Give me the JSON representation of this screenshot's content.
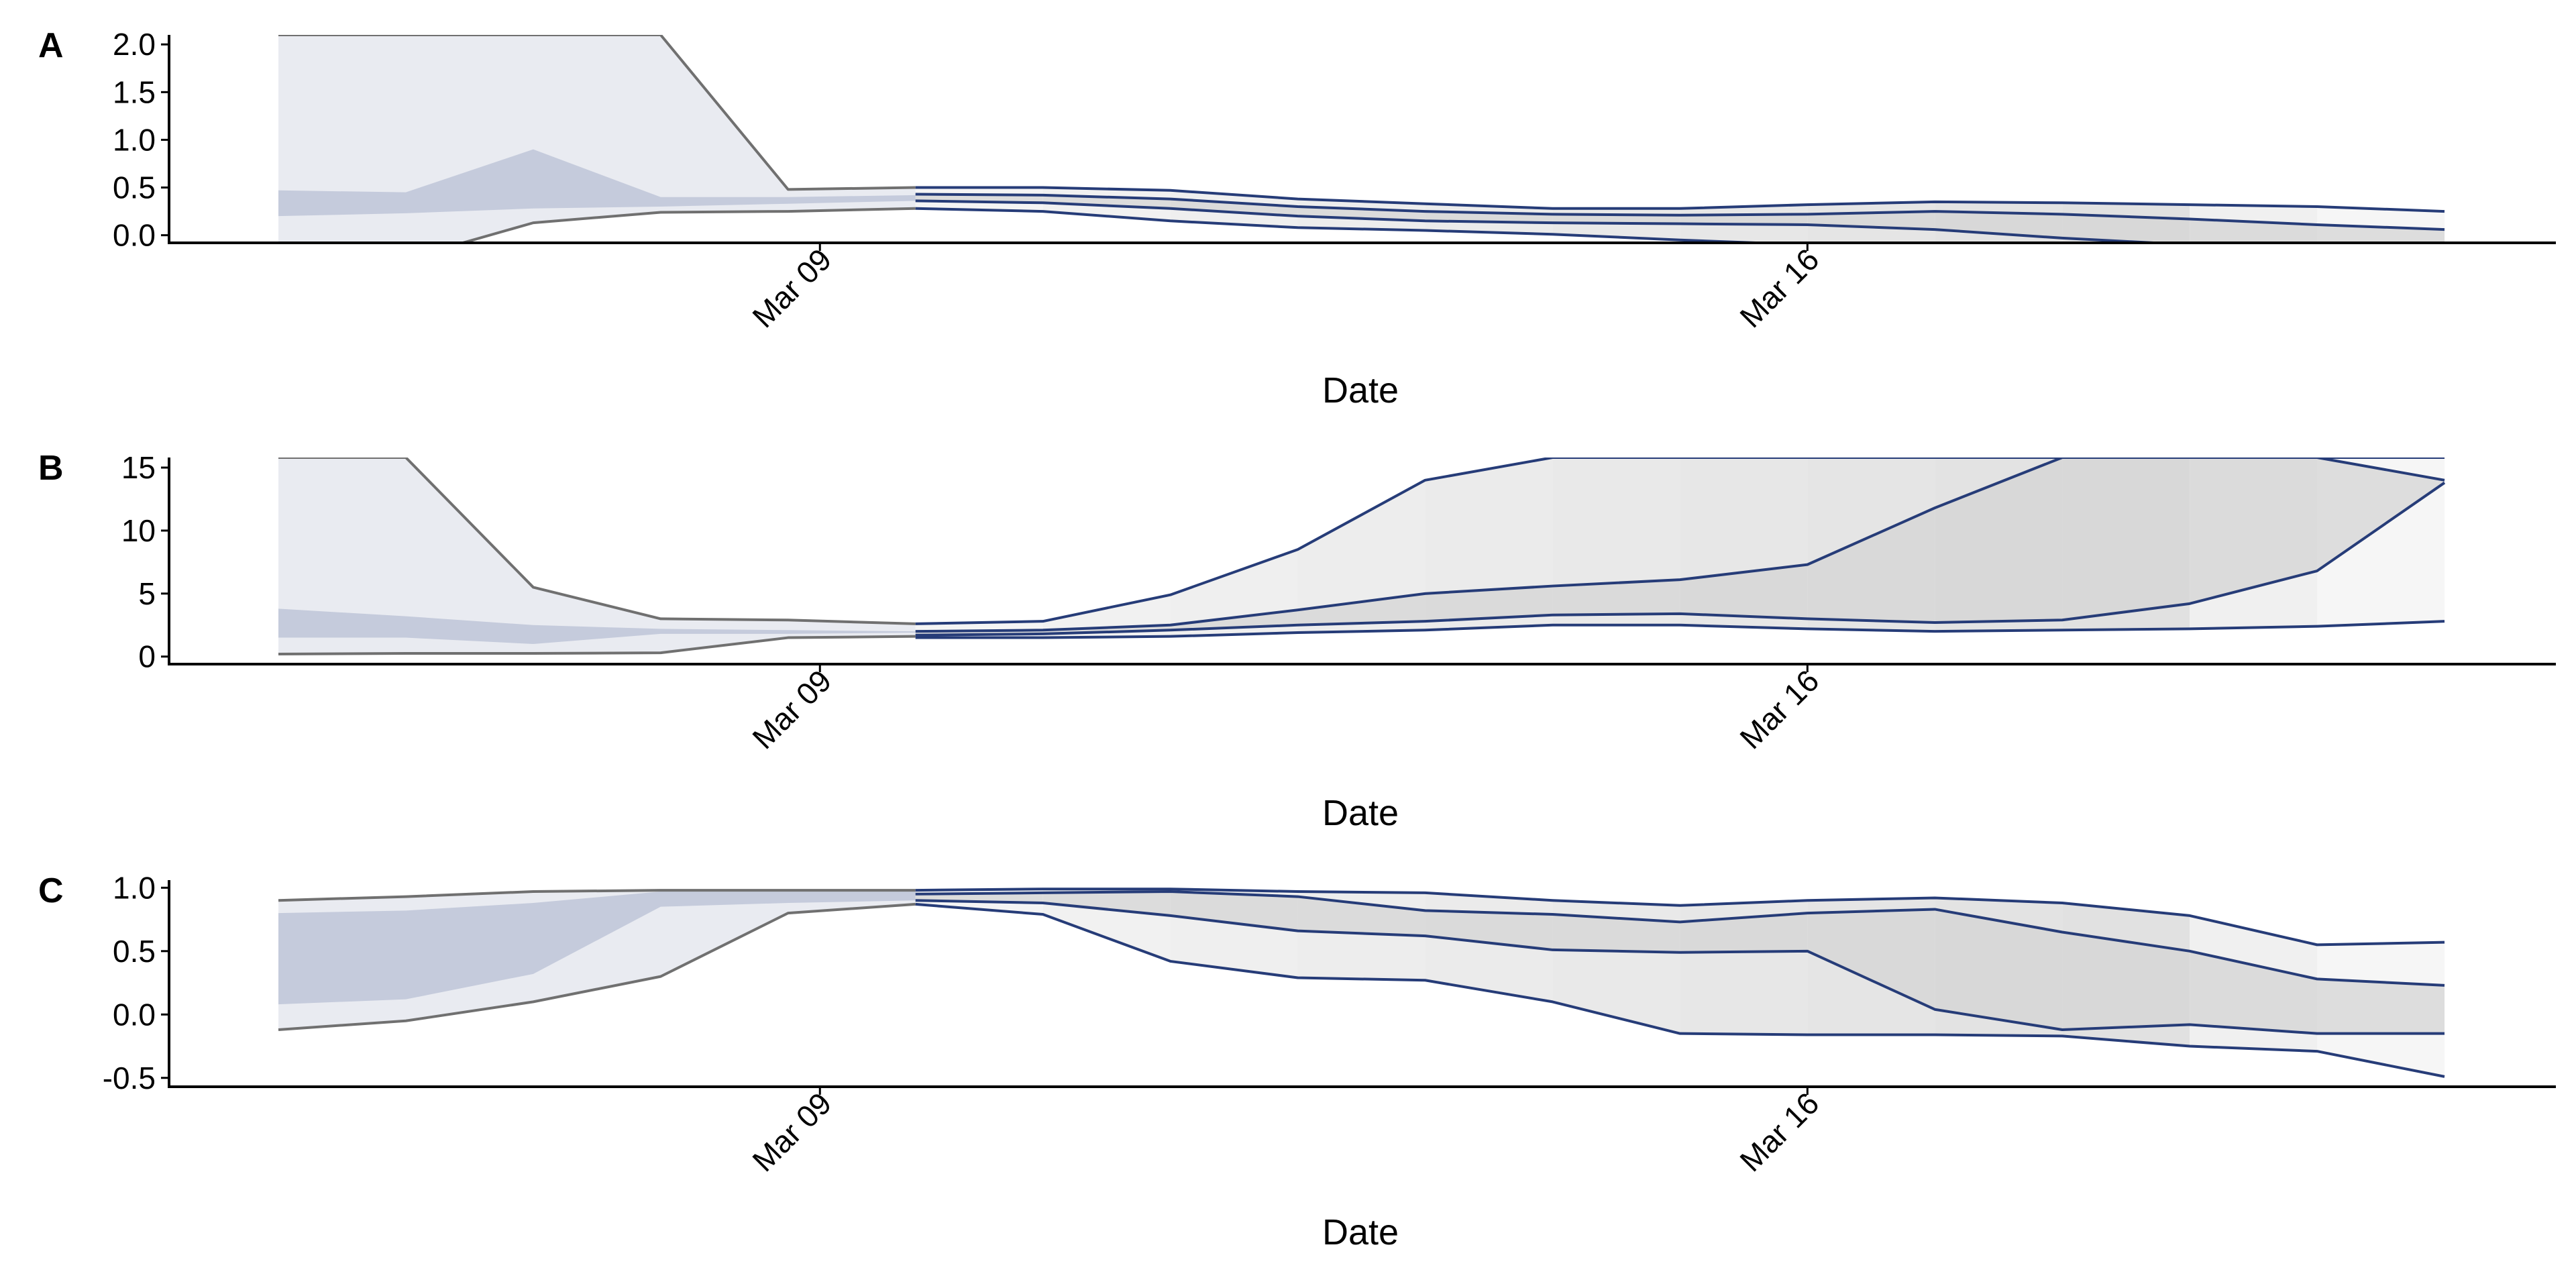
{
  "colors": {
    "nowcast_band": "#c5cbdc",
    "nowcast_outer": "#e9ebf1",
    "nowcast_line": "#707070",
    "forecast_line": "#263c78",
    "forecast_gray_light": "#f4f4f4",
    "forecast_gray_mid": "#e3e3e3",
    "forecast_gray_dark": "#d4d4d4",
    "axis": "#000000"
  },
  "chart_data": [
    {
      "panel": "A",
      "type": "area",
      "xlabel": "Date",
      "x_ticks": [
        "Mar 09",
        "Mar 16"
      ],
      "y_ticks": [
        "0.0",
        "0.5",
        "1.0",
        "1.5",
        "2.0"
      ],
      "ylim": [
        -0.08,
        2.1
      ],
      "x_start": "Mar 04",
      "x_end": "Mar 21",
      "nowcast": {
        "days": [
          0,
          1,
          2,
          3,
          4,
          5
        ],
        "outer_low": [
          -0.35,
          -0.25,
          0.13,
          0.24,
          0.25,
          0.28
        ],
        "outer_high": [
          2.1,
          2.1,
          2.1,
          2.1,
          0.48,
          0.5
        ],
        "inner_low": [
          0.2,
          0.23,
          0.28,
          0.3,
          0.33,
          0.36
        ],
        "inner_high": [
          0.47,
          0.45,
          0.9,
          0.4,
          0.4,
          0.42
        ]
      },
      "forecast": {
        "days": [
          5,
          6,
          7,
          8,
          9,
          10,
          11,
          12,
          13,
          14,
          15,
          16,
          17
        ],
        "upper": [
          0.5,
          0.5,
          0.47,
          0.38,
          0.33,
          0.28,
          0.28,
          0.32,
          0.35,
          0.34,
          0.32,
          0.3,
          0.25
        ],
        "mid_high": [
          0.43,
          0.42,
          0.38,
          0.3,
          0.25,
          0.22,
          0.21,
          0.22,
          0.25,
          0.22,
          0.17,
          0.11,
          0.06
        ],
        "mid_low": [
          0.36,
          0.34,
          0.28,
          0.2,
          0.15,
          0.13,
          0.12,
          0.11,
          0.06,
          -0.03,
          -0.1,
          -0.17,
          -0.24
        ],
        "lower": [
          0.28,
          0.25,
          0.15,
          0.08,
          0.05,
          0.01,
          -0.05,
          -0.1,
          -0.08,
          -0.15,
          -0.2,
          -0.25,
          -0.3
        ]
      }
    },
    {
      "panel": "B",
      "type": "area",
      "xlabel": "Date",
      "x_ticks": [
        "Mar 09",
        "Mar 16"
      ],
      "y_ticks": [
        "0",
        "5",
        "10",
        "15"
      ],
      "ylim": [
        -0.6,
        15.8
      ],
      "x_start": "Mar 04",
      "x_end": "Mar 21",
      "nowcast": {
        "days": [
          0,
          1,
          2,
          3,
          4,
          5
        ],
        "outer_low": [
          0.2,
          0.25,
          0.25,
          0.3,
          1.5,
          1.6
        ],
        "outer_high": [
          15.8,
          15.8,
          5.5,
          3.0,
          2.9,
          2.6
        ],
        "inner_low": [
          1.5,
          1.5,
          1.0,
          1.8,
          1.8,
          1.9
        ],
        "inner_high": [
          3.8,
          3.2,
          2.5,
          2.2,
          2.1,
          2.0
        ]
      },
      "forecast": {
        "days": [
          5,
          6,
          7,
          8,
          9,
          10,
          11,
          12,
          13,
          14,
          15,
          16,
          17
        ],
        "upper": [
          2.6,
          2.8,
          4.9,
          8.5,
          14.0,
          15.8,
          15.8,
          15.8,
          15.8,
          15.8,
          15.8,
          15.8,
          15.8
        ],
        "mid_high": [
          2.0,
          2.1,
          2.5,
          3.7,
          5.0,
          5.6,
          6.1,
          7.3,
          11.8,
          15.8,
          15.8,
          15.8,
          14.0
        ],
        "mid_low": [
          1.7,
          1.8,
          2.1,
          2.5,
          2.8,
          3.3,
          3.4,
          3.0,
          2.7,
          2.9,
          4.2,
          6.8,
          13.8
        ],
        "lower": [
          1.5,
          1.5,
          1.6,
          1.9,
          2.1,
          2.5,
          2.5,
          2.2,
          2.0,
          2.1,
          2.2,
          2.4,
          2.8
        ]
      }
    },
    {
      "panel": "C",
      "type": "area",
      "xlabel": "Date",
      "x_ticks": [
        "Mar 09",
        "Mar 16"
      ],
      "y_ticks": [
        "-0.5",
        "0.0",
        "0.5",
        "1.0"
      ],
      "ylim": [
        -0.57,
        1.06
      ],
      "x_start": "Mar 04",
      "x_end": "Mar 21",
      "nowcast": {
        "days": [
          0,
          1,
          2,
          3,
          4,
          5
        ],
        "outer_low": [
          -0.12,
          -0.05,
          0.1,
          0.3,
          0.8,
          0.87
        ],
        "outer_high": [
          0.9,
          0.93,
          0.97,
          0.98,
          0.98,
          0.98
        ],
        "inner_low": [
          0.08,
          0.12,
          0.32,
          0.85,
          0.88,
          0.9
        ],
        "inner_high": [
          0.8,
          0.82,
          0.88,
          0.97,
          0.97,
          0.97
        ]
      },
      "forecast": {
        "days": [
          5,
          6,
          7,
          8,
          9,
          10,
          11,
          12,
          13,
          14,
          15,
          16,
          17
        ],
        "upper": [
          0.98,
          0.99,
          0.99,
          0.97,
          0.96,
          0.9,
          0.86,
          0.9,
          0.92,
          0.88,
          0.78,
          0.55,
          0.57
        ],
        "mid_high": [
          0.95,
          0.96,
          0.97,
          0.93,
          0.82,
          0.79,
          0.73,
          0.8,
          0.83,
          0.65,
          0.5,
          0.28,
          0.23
        ],
        "mid_low": [
          0.9,
          0.88,
          0.78,
          0.66,
          0.62,
          0.51,
          0.49,
          0.5,
          0.04,
          -0.12,
          -0.08,
          -0.15,
          -0.15
        ],
        "lower": [
          0.87,
          0.79,
          0.42,
          0.29,
          0.27,
          0.1,
          -0.15,
          -0.16,
          -0.16,
          -0.17,
          -0.25,
          -0.29,
          -0.49
        ]
      }
    }
  ]
}
